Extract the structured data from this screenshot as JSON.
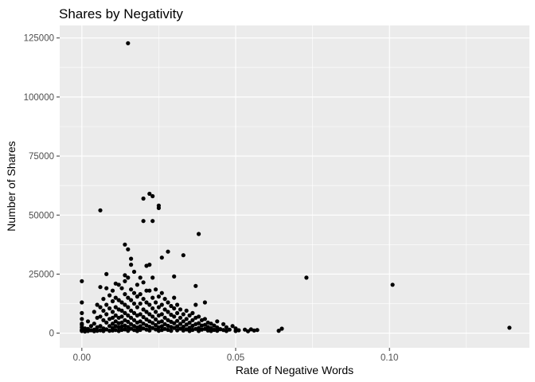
{
  "chart_data": {
    "type": "scatter",
    "title": "Shares by Negativity",
    "xlabel": "Rate of Negative Words",
    "ylabel": "Number of Shares",
    "xlim": [
      -0.0072,
      0.1455
    ],
    "ylim": [
      -6200,
      130300
    ],
    "x_ticks": [
      0.0,
      0.05,
      0.1
    ],
    "x_tick_labels": [
      "0.00",
      "0.05",
      "0.10"
    ],
    "y_ticks": [
      0,
      25000,
      50000,
      75000,
      100000,
      125000
    ],
    "y_tick_labels": [
      "0",
      "25000",
      "50000",
      "75000",
      "100000",
      "125000"
    ],
    "grid": true,
    "legend": "none",
    "colors": {
      "panel": "#ebebeb",
      "grid": "#ffffff",
      "point": "#000000",
      "tick": "#4d4d4d"
    },
    "series": [
      {
        "points": [
          [
            0.0,
            22000
          ],
          [
            0.0,
            13000
          ],
          [
            0.0,
            8500
          ],
          [
            0.0,
            6000
          ],
          [
            0.0,
            4000
          ],
          [
            0.0,
            2500
          ],
          [
            0.0,
            1500
          ],
          [
            0.0,
            900
          ],
          [
            0.0,
            3500
          ],
          [
            0.0,
            1100
          ],
          [
            0.001,
            2000
          ],
          [
            0.001,
            700
          ],
          [
            0.002,
            5000
          ],
          [
            0.002,
            1800
          ],
          [
            0.002,
            900
          ],
          [
            0.003,
            3000
          ],
          [
            0.003,
            1200
          ],
          [
            0.004,
            9000
          ],
          [
            0.004,
            4000
          ],
          [
            0.004,
            1500
          ],
          [
            0.004,
            800
          ],
          [
            0.005,
            12000
          ],
          [
            0.005,
            6500
          ],
          [
            0.005,
            2500
          ],
          [
            0.005,
            1000
          ],
          [
            0.006,
            52000
          ],
          [
            0.006,
            19500
          ],
          [
            0.006,
            11000
          ],
          [
            0.006,
            7000
          ],
          [
            0.006,
            3000
          ],
          [
            0.006,
            1200
          ],
          [
            0.007,
            14500
          ],
          [
            0.007,
            9500
          ],
          [
            0.007,
            5500
          ],
          [
            0.007,
            2000
          ],
          [
            0.007,
            900
          ],
          [
            0.008,
            25000
          ],
          [
            0.008,
            19000
          ],
          [
            0.008,
            12000
          ],
          [
            0.008,
            8000
          ],
          [
            0.008,
            4500
          ],
          [
            0.008,
            1600
          ],
          [
            0.009,
            16000
          ],
          [
            0.009,
            10500
          ],
          [
            0.009,
            6000
          ],
          [
            0.009,
            3000
          ],
          [
            0.009,
            1000
          ],
          [
            0.01,
            18000
          ],
          [
            0.01,
            13500
          ],
          [
            0.01,
            9000
          ],
          [
            0.01,
            6500
          ],
          [
            0.01,
            4000
          ],
          [
            0.01,
            2200
          ],
          [
            0.01,
            1100
          ],
          [
            0.011,
            21000
          ],
          [
            0.011,
            15000
          ],
          [
            0.011,
            11000
          ],
          [
            0.011,
            7500
          ],
          [
            0.011,
            5000
          ],
          [
            0.011,
            3000
          ],
          [
            0.011,
            1300
          ],
          [
            0.012,
            20500
          ],
          [
            0.012,
            14000
          ],
          [
            0.012,
            10000
          ],
          [
            0.012,
            6500
          ],
          [
            0.012,
            4200
          ],
          [
            0.012,
            2500
          ],
          [
            0.012,
            900
          ],
          [
            0.013,
            19000
          ],
          [
            0.013,
            13000
          ],
          [
            0.013,
            9500
          ],
          [
            0.013,
            7000
          ],
          [
            0.013,
            4500
          ],
          [
            0.013,
            2800
          ],
          [
            0.013,
            1400
          ],
          [
            0.014,
            37500
          ],
          [
            0.014,
            24500
          ],
          [
            0.014,
            22000
          ],
          [
            0.014,
            16500
          ],
          [
            0.014,
            12000
          ],
          [
            0.014,
            8500
          ],
          [
            0.014,
            5500
          ],
          [
            0.014,
            3200
          ],
          [
            0.014,
            1600
          ],
          [
            0.015,
            122800
          ],
          [
            0.015,
            35500
          ],
          [
            0.015,
            23500
          ],
          [
            0.015,
            15000
          ],
          [
            0.015,
            11000
          ],
          [
            0.015,
            7500
          ],
          [
            0.015,
            4800
          ],
          [
            0.015,
            2600
          ],
          [
            0.015,
            1000
          ],
          [
            0.016,
            31500
          ],
          [
            0.016,
            29000
          ],
          [
            0.016,
            18500
          ],
          [
            0.016,
            14000
          ],
          [
            0.016,
            9500
          ],
          [
            0.016,
            6500
          ],
          [
            0.016,
            3800
          ],
          [
            0.016,
            1900
          ],
          [
            0.017,
            26000
          ],
          [
            0.017,
            17000
          ],
          [
            0.017,
            12500
          ],
          [
            0.017,
            8500
          ],
          [
            0.017,
            5500
          ],
          [
            0.017,
            3000
          ],
          [
            0.017,
            1300
          ],
          [
            0.018,
            20500
          ],
          [
            0.018,
            15500
          ],
          [
            0.018,
            11000
          ],
          [
            0.018,
            7500
          ],
          [
            0.018,
            4500
          ],
          [
            0.018,
            2400
          ],
          [
            0.018,
            900
          ],
          [
            0.019,
            23500
          ],
          [
            0.019,
            16500
          ],
          [
            0.019,
            12500
          ],
          [
            0.019,
            8000
          ],
          [
            0.019,
            5000
          ],
          [
            0.019,
            2900
          ],
          [
            0.019,
            1400
          ],
          [
            0.02,
            57000
          ],
          [
            0.02,
            47500
          ],
          [
            0.02,
            21500
          ],
          [
            0.02,
            14500
          ],
          [
            0.02,
            10000
          ],
          [
            0.02,
            6800
          ],
          [
            0.02,
            4000
          ],
          [
            0.02,
            2000
          ],
          [
            0.021,
            28500
          ],
          [
            0.021,
            18000
          ],
          [
            0.021,
            13000
          ],
          [
            0.021,
            9000
          ],
          [
            0.021,
            5800
          ],
          [
            0.021,
            3300
          ],
          [
            0.021,
            1500
          ],
          [
            0.022,
            59000
          ],
          [
            0.022,
            29000
          ],
          [
            0.022,
            18000
          ],
          [
            0.022,
            12000
          ],
          [
            0.022,
            8000
          ],
          [
            0.022,
            5000
          ],
          [
            0.022,
            2700
          ],
          [
            0.022,
            1100
          ],
          [
            0.023,
            58000
          ],
          [
            0.023,
            47500
          ],
          [
            0.023,
            23500
          ],
          [
            0.023,
            15000
          ],
          [
            0.023,
            10500
          ],
          [
            0.023,
            7000
          ],
          [
            0.023,
            4300
          ],
          [
            0.023,
            2200
          ],
          [
            0.024,
            18500
          ],
          [
            0.024,
            13000
          ],
          [
            0.024,
            9000
          ],
          [
            0.024,
            5800
          ],
          [
            0.024,
            3400
          ],
          [
            0.024,
            1600
          ],
          [
            0.025,
            54000
          ],
          [
            0.025,
            53000
          ],
          [
            0.025,
            15500
          ],
          [
            0.025,
            11000
          ],
          [
            0.025,
            7500
          ],
          [
            0.025,
            4600
          ],
          [
            0.025,
            2500
          ],
          [
            0.025,
            1000
          ],
          [
            0.026,
            32000
          ],
          [
            0.026,
            17000
          ],
          [
            0.026,
            12000
          ],
          [
            0.026,
            8000
          ],
          [
            0.026,
            5000
          ],
          [
            0.026,
            2900
          ],
          [
            0.026,
            1300
          ],
          [
            0.027,
            14500
          ],
          [
            0.027,
            10000
          ],
          [
            0.027,
            6500
          ],
          [
            0.027,
            3800
          ],
          [
            0.027,
            1800
          ],
          [
            0.028,
            34500
          ],
          [
            0.028,
            13000
          ],
          [
            0.028,
            9000
          ],
          [
            0.028,
            5500
          ],
          [
            0.028,
            3100
          ],
          [
            0.028,
            1400
          ],
          [
            0.029,
            11500
          ],
          [
            0.029,
            7800
          ],
          [
            0.029,
            4800
          ],
          [
            0.029,
            2600
          ],
          [
            0.029,
            1000
          ],
          [
            0.03,
            24000
          ],
          [
            0.03,
            15000
          ],
          [
            0.03,
            10500
          ],
          [
            0.03,
            7000
          ],
          [
            0.03,
            4200
          ],
          [
            0.03,
            2200
          ],
          [
            0.031,
            12000
          ],
          [
            0.031,
            8500
          ],
          [
            0.031,
            5200
          ],
          [
            0.031,
            2900
          ],
          [
            0.031,
            1200
          ],
          [
            0.032,
            10000
          ],
          [
            0.032,
            6500
          ],
          [
            0.032,
            3900
          ],
          [
            0.032,
            1900
          ],
          [
            0.033,
            33000
          ],
          [
            0.033,
            8000
          ],
          [
            0.033,
            5000
          ],
          [
            0.033,
            2700
          ],
          [
            0.033,
            1100
          ],
          [
            0.034,
            9500
          ],
          [
            0.034,
            6000
          ],
          [
            0.034,
            3600
          ],
          [
            0.034,
            1600
          ],
          [
            0.035,
            7500
          ],
          [
            0.035,
            4400
          ],
          [
            0.035,
            2300
          ],
          [
            0.035,
            900
          ],
          [
            0.036,
            8500
          ],
          [
            0.036,
            5500
          ],
          [
            0.036,
            3100
          ],
          [
            0.036,
            1400
          ],
          [
            0.037,
            20000
          ],
          [
            0.037,
            12000
          ],
          [
            0.037,
            6500
          ],
          [
            0.037,
            3800
          ],
          [
            0.037,
            1800
          ],
          [
            0.038,
            42000
          ],
          [
            0.038,
            7000
          ],
          [
            0.038,
            4200
          ],
          [
            0.038,
            2200
          ],
          [
            0.038,
            900
          ],
          [
            0.039,
            5500
          ],
          [
            0.039,
            3200
          ],
          [
            0.039,
            1500
          ],
          [
            0.04,
            13000
          ],
          [
            0.04,
            6000
          ],
          [
            0.04,
            3500
          ],
          [
            0.04,
            1800
          ],
          [
            0.041,
            4500
          ],
          [
            0.041,
            2600
          ],
          [
            0.041,
            1100
          ],
          [
            0.042,
            4000
          ],
          [
            0.042,
            2100
          ],
          [
            0.042,
            900
          ],
          [
            0.043,
            3200
          ],
          [
            0.043,
            1400
          ],
          [
            0.044,
            5000
          ],
          [
            0.044,
            2400
          ],
          [
            0.044,
            1000
          ],
          [
            0.045,
            1700
          ],
          [
            0.046,
            3800
          ],
          [
            0.046,
            1300
          ],
          [
            0.047,
            2500
          ],
          [
            0.047,
            900
          ],
          [
            0.048,
            1500
          ],
          [
            0.049,
            3000
          ],
          [
            0.05,
            2000
          ],
          [
            0.05,
            900
          ],
          [
            0.051,
            1200
          ],
          [
            0.053,
            1500
          ],
          [
            0.054,
            800
          ],
          [
            0.055,
            1600
          ],
          [
            0.056,
            1100
          ],
          [
            0.057,
            1300
          ],
          [
            0.064,
            1000
          ],
          [
            0.065,
            1900
          ],
          [
            0.073,
            23500
          ],
          [
            0.101,
            20500
          ],
          [
            0.139,
            2300
          ]
        ]
      }
    ]
  }
}
